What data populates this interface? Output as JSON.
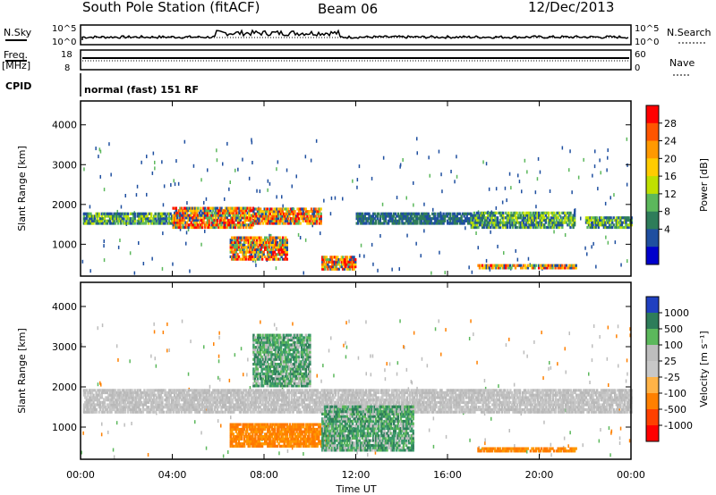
{
  "header": {
    "station": "South Pole Station (fitACF)",
    "beam": "Beam 06",
    "date": "12/Dec/2013"
  },
  "strips": {
    "nsky_label": "N.Sky",
    "nsky_ticks": [
      "10^5",
      "10^0"
    ],
    "nsearch_label": "N.Search",
    "nsearch_ticks": [
      "10^5",
      "10^0"
    ],
    "freq_label": "Freq.",
    "freq_unit": "[MHz]",
    "freq_ticks": [
      "18",
      "8"
    ],
    "nave_label": "Nave",
    "nave_ticks": [
      "60",
      "0"
    ],
    "cpid_label": "CPID",
    "cpid_value": "normal (fast) 151 RF"
  },
  "chart_data": [
    {
      "type": "heatmap",
      "name": "power-panel",
      "xlabel": "",
      "ylabel": "Slant Range [km]",
      "x_ticks": [
        "00:00",
        "04:00",
        "08:00",
        "12:00",
        "16:00",
        "20:00",
        "00:00"
      ],
      "x_hours": [
        0,
        4,
        8,
        12,
        16,
        20,
        24
      ],
      "xlim": [
        0,
        24
      ],
      "y_ticks": [
        1000,
        2000,
        3000,
        4000
      ],
      "ylim": [
        200,
        4600
      ],
      "colorbar": {
        "label": "Power [dB]",
        "ticks": [
          "28",
          "24",
          "20",
          "16",
          "12",
          "8",
          "4"
        ],
        "colors": [
          "#ff0000",
          "#ff5500",
          "#ff9900",
          "#ffcc00",
          "#bfe000",
          "#5cb85c",
          "#2e7d5a",
          "#1f4fa0",
          "#0000cc"
        ]
      },
      "bands": [
        {
          "x0": 0.1,
          "x1": 4.0,
          "y0": 1500,
          "y1": 1800,
          "level": "mid"
        },
        {
          "x0": 4.0,
          "x1": 7.5,
          "y0": 1400,
          "y1": 1900,
          "level": "high"
        },
        {
          "x0": 7.5,
          "x1": 10.5,
          "y0": 1500,
          "y1": 1900,
          "level": "high"
        },
        {
          "x0": 6.5,
          "x1": 9.0,
          "y0": 600,
          "y1": 1200,
          "level": "high"
        },
        {
          "x0": 10.5,
          "x1": 12.0,
          "y0": 350,
          "y1": 700,
          "level": "high"
        },
        {
          "x0": 12.0,
          "x1": 17.0,
          "y0": 1500,
          "y1": 1750,
          "level": "low"
        },
        {
          "x0": 17.0,
          "x1": 21.5,
          "y0": 1400,
          "y1": 1800,
          "level": "mid"
        },
        {
          "x0": 17.3,
          "x1": 21.6,
          "y0": 380,
          "y1": 500,
          "level": "high"
        },
        {
          "x0": 22.0,
          "x1": 24.0,
          "y0": 1400,
          "y1": 1700,
          "level": "mid"
        }
      ]
    },
    {
      "type": "heatmap",
      "name": "velocity-panel",
      "xlabel": "Time UT",
      "ylabel": "Slant Range [km]",
      "x_ticks": [
        "00:00",
        "04:00",
        "08:00",
        "12:00",
        "16:00",
        "20:00",
        "00:00"
      ],
      "x_hours": [
        0,
        4,
        8,
        12,
        16,
        20,
        24
      ],
      "xlim": [
        0,
        24
      ],
      "y_ticks": [
        1000,
        2000,
        3000,
        4000
      ],
      "ylim": [
        200,
        4600
      ],
      "colorbar": {
        "label": "Velocity [m s⁻¹]",
        "ticks": [
          "1000",
          "500",
          "100",
          "25",
          "-25",
          "-100",
          "-500",
          "-1000"
        ],
        "colors": [
          "#2040c0",
          "#2e7d5a",
          "#5cb85c",
          "#bdbdbd",
          "#c8c8c8",
          "#ffb347",
          "#ff8000",
          "#ff4000",
          "#ff0000"
        ]
      },
      "bands": [
        {
          "x0": 0.1,
          "x1": 24.0,
          "y0": 1350,
          "y1": 1950,
          "level": "ground"
        },
        {
          "x0": 6.5,
          "x1": 10.8,
          "y0": 500,
          "y1": 1100,
          "level": "neg"
        },
        {
          "x0": 10.5,
          "x1": 14.5,
          "y0": 400,
          "y1": 1500,
          "level": "pos"
        },
        {
          "x0": 17.3,
          "x1": 21.6,
          "y0": 380,
          "y1": 500,
          "level": "neg"
        },
        {
          "x0": 7.5,
          "x1": 10.0,
          "y0": 2000,
          "y1": 3300,
          "level": "pos"
        }
      ]
    }
  ]
}
